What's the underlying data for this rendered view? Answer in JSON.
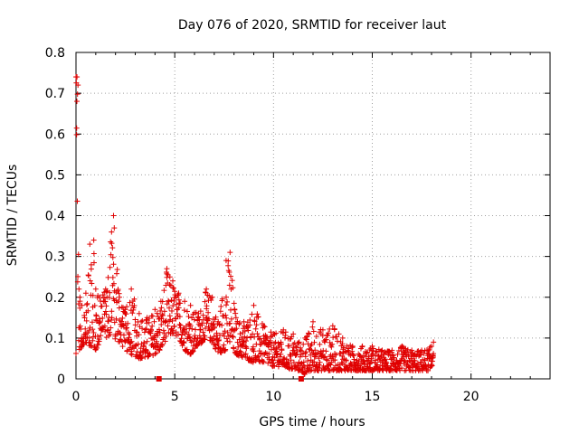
{
  "chart_data": {
    "type": "scatter",
    "title": "Day 076 of 2020, SRMTID for receiver laut",
    "xlabel": "GPS time / hours",
    "ylabel": "SRMTID / TECUs",
    "xlim": [
      0,
      24
    ],
    "ylim": [
      0,
      0.8
    ],
    "x_ticks": [
      0,
      5,
      10,
      15,
      20
    ],
    "y_ticks": [
      0,
      0.1,
      0.2,
      0.3,
      0.4,
      0.5,
      0.6,
      0.7,
      0.8
    ],
    "x_tick_labels": [
      "0",
      "5",
      "10",
      "15",
      "20"
    ],
    "y_tick_labels": [
      "0",
      "0.1",
      "0.2",
      "0.3",
      "0.4",
      "0.5",
      "0.6",
      "0.7",
      "0.8"
    ],
    "grid": true,
    "marker": "+",
    "color": "#e00000",
    "series": [
      {
        "name": "SRMTID",
        "envelope_x": [
          0.0,
          0.05,
          0.1,
          0.15,
          0.2,
          0.3,
          0.5,
          0.7,
          0.9,
          1.0,
          1.2,
          1.5,
          1.8,
          1.9,
          2.2,
          2.5,
          2.8,
          3.2,
          3.6,
          4.0,
          4.3,
          4.6,
          4.9,
          5.2,
          5.5,
          5.8,
          6.2,
          6.6,
          6.9,
          7.2,
          7.6,
          7.8,
          8.1,
          8.5,
          9.0,
          9.5,
          10.0,
          10.5,
          11.0,
          11.3,
          11.6,
          12.0,
          12.5,
          13.0,
          13.5,
          14.0,
          14.5,
          15.0,
          15.5,
          16.0,
          16.5,
          17.0,
          17.5,
          18.0,
          18.1
        ],
        "envelope_low": [
          0.56,
          0.62,
          0.08,
          0.07,
          0.07,
          0.08,
          0.09,
          0.08,
          0.08,
          0.07,
          0.09,
          0.1,
          0.11,
          0.1,
          0.09,
          0.07,
          0.06,
          0.05,
          0.05,
          0.06,
          0.07,
          0.1,
          0.11,
          0.1,
          0.07,
          0.06,
          0.08,
          0.1,
          0.09,
          0.06,
          0.07,
          0.08,
          0.06,
          0.05,
          0.04,
          0.04,
          0.03,
          0.03,
          0.02,
          0.02,
          0.01,
          0.02,
          0.02,
          0.02,
          0.02,
          0.02,
          0.02,
          0.02,
          0.02,
          0.02,
          0.02,
          0.02,
          0.02,
          0.02,
          0.06
        ],
        "envelope_high": [
          0.74,
          0.74,
          0.72,
          0.22,
          0.2,
          0.18,
          0.21,
          0.33,
          0.34,
          0.22,
          0.2,
          0.22,
          0.36,
          0.4,
          0.2,
          0.17,
          0.22,
          0.16,
          0.15,
          0.17,
          0.19,
          0.27,
          0.24,
          0.21,
          0.19,
          0.18,
          0.16,
          0.22,
          0.2,
          0.14,
          0.29,
          0.31,
          0.15,
          0.14,
          0.18,
          0.13,
          0.11,
          0.12,
          0.11,
          0.09,
          0.1,
          0.14,
          0.12,
          0.13,
          0.1,
          0.08,
          0.08,
          0.08,
          0.07,
          0.07,
          0.08,
          0.07,
          0.07,
          0.08,
          0.09
        ]
      }
    ],
    "axis_markers_x": [
      4.2,
      11.4
    ]
  }
}
